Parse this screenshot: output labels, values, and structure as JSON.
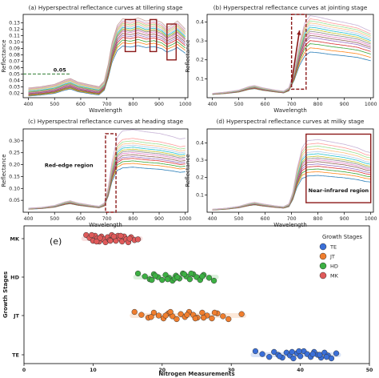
{
  "chart_data": [
    {
      "type": "line",
      "title": "(a) Hyperspectral reflectance curves at tillering stage",
      "xlabel": "Wavelength",
      "ylabel": "Reflectance",
      "xlim": [
        380,
        1010
      ],
      "ylim": [
        0.013,
        0.143
      ],
      "xticks": [
        "400",
        "500",
        "600",
        "700",
        "800",
        "900",
        "1000"
      ],
      "yticks": [
        "0.02",
        "0.03",
        "0.04",
        "0.05",
        "0.06",
        "0.07",
        "0.08",
        "0.09",
        "0.10",
        "0.11",
        "0.12",
        "0.13"
      ],
      "annotations": [
        "0.05"
      ],
      "reference_line": {
        "y": 0.05,
        "color": "#2e7d32"
      },
      "grid": false,
      "curve_shape": {
        "x": [
          400,
          450,
          500,
          540,
          560,
          590,
          640,
          670,
          690,
          705,
          720,
          740,
          760,
          790,
          820,
          850,
          880,
          910,
          930,
          950,
          970,
          1000
        ],
        "y": [
          0.022,
          0.024,
          0.027,
          0.033,
          0.035,
          0.03,
          0.026,
          0.024,
          0.032,
          0.055,
          0.085,
          0.108,
          0.117,
          0.115,
          0.118,
          0.114,
          0.116,
          0.112,
          0.105,
          0.109,
          0.114,
          0.103
        ]
      },
      "series": [
        {
          "y_at_750": 0.09
        },
        {
          "y_at_750": 0.095
        },
        {
          "y_at_750": 0.099
        },
        {
          "y_at_750": 0.103
        },
        {
          "y_at_750": 0.106
        },
        {
          "y_at_750": 0.109
        },
        {
          "y_at_750": 0.112
        },
        {
          "y_at_750": 0.114
        },
        {
          "y_at_750": 0.116
        },
        {
          "y_at_750": 0.118
        },
        {
          "y_at_750": 0.12
        },
        {
          "y_at_750": 0.122
        },
        {
          "y_at_750": 0.124
        },
        {
          "y_at_750": 0.126
        },
        {
          "y_at_750": 0.128
        },
        {
          "y_at_750": 0.131
        }
      ],
      "highlights": [
        {
          "label": "",
          "x": [
            770,
            810
          ],
          "y": [
            0.085,
            0.135
          ]
        },
        {
          "label": "",
          "x": [
            865,
            890
          ],
          "y": [
            0.085,
            0.135
          ]
        },
        {
          "label": "",
          "x": [
            930,
            965
          ],
          "y": [
            0.072,
            0.128
          ]
        }
      ]
    },
    {
      "type": "line",
      "title": "(b) Hyperspectral reflectance curves at jointing stage",
      "xlabel": "Wavelength",
      "ylabel": "Reflectance",
      "xlim": [
        380,
        1010
      ],
      "ylim": [
        0.0,
        0.44
      ],
      "xticks": [
        "400",
        "500",
        "600",
        "700",
        "800",
        "900",
        "1000"
      ],
      "yticks": [
        "0.1",
        "0.2",
        "0.3",
        "0.4"
      ],
      "grid": false,
      "curve_shape": {
        "x": [
          400,
          450,
          500,
          540,
          560,
          590,
          640,
          670,
          690,
          710,
          730,
          750,
          770,
          800,
          850,
          900,
          950,
          1000
        ],
        "y": [
          0.02,
          0.026,
          0.035,
          0.052,
          0.056,
          0.046,
          0.035,
          0.03,
          0.045,
          0.12,
          0.23,
          0.31,
          0.34,
          0.335,
          0.322,
          0.312,
          0.3,
          0.275
        ]
      },
      "series": [
        {
          "y_at_750": 0.22
        },
        {
          "y_at_750": 0.24
        },
        {
          "y_at_750": 0.26
        },
        {
          "y_at_750": 0.275
        },
        {
          "y_at_750": 0.29
        },
        {
          "y_at_750": 0.3
        },
        {
          "y_at_750": 0.31
        },
        {
          "y_at_750": 0.32
        },
        {
          "y_at_750": 0.33
        },
        {
          "y_at_750": 0.34
        },
        {
          "y_at_750": 0.35
        },
        {
          "y_at_750": 0.36
        },
        {
          "y_at_750": 0.37
        },
        {
          "y_at_750": 0.38
        },
        {
          "y_at_750": 0.395
        }
      ],
      "highlights": [
        {
          "label": "",
          "x": [
            700,
            755
          ],
          "y": [
            0.045,
            0.44
          ]
        }
      ],
      "arrow": {
        "from": [
          700,
          0.08
        ],
        "to": [
          730,
          0.355
        ]
      }
    },
    {
      "type": "line",
      "title": "(c) Hyperspectral reflectance curves at heading stage",
      "xlabel": "Wavelength",
      "ylabel": "Reflectance",
      "xlim": [
        380,
        1010
      ],
      "ylim": [
        0.0,
        0.35
      ],
      "xticks": [
        "400",
        "500",
        "600",
        "700",
        "800",
        "900",
        "1000"
      ],
      "yticks": [
        "0.05",
        "0.10",
        "0.15",
        "0.20",
        "0.25",
        "0.30"
      ],
      "annotations": [
        "Red-edge region"
      ],
      "grid": false,
      "curve_shape": {
        "x": [
          400,
          450,
          500,
          540,
          560,
          590,
          640,
          670,
          690,
          705,
          720,
          740,
          760,
          800,
          850,
          900,
          950,
          980,
          1000
        ],
        "y": [
          0.015,
          0.018,
          0.025,
          0.038,
          0.042,
          0.034,
          0.026,
          0.022,
          0.032,
          0.085,
          0.17,
          0.24,
          0.258,
          0.262,
          0.255,
          0.25,
          0.24,
          0.232,
          0.235
        ]
      },
      "series": [
        {
          "y_at_750": 0.18
        },
        {
          "y_at_750": 0.195
        },
        {
          "y_at_750": 0.205
        },
        {
          "y_at_750": 0.215
        },
        {
          "y_at_750": 0.222
        },
        {
          "y_at_750": 0.23
        },
        {
          "y_at_750": 0.238
        },
        {
          "y_at_750": 0.245
        },
        {
          "y_at_750": 0.252
        },
        {
          "y_at_750": 0.26
        },
        {
          "y_at_750": 0.268
        },
        {
          "y_at_750": 0.276
        },
        {
          "y_at_750": 0.285
        },
        {
          "y_at_750": 0.295
        },
        {
          "y_at_750": 0.33
        }
      ],
      "highlights": [
        {
          "label": "Red-edge region",
          "x": [
            695,
            735
          ],
          "y": [
            0.0,
            0.33
          ]
        }
      ]
    },
    {
      "type": "line",
      "title": "(d) Hyperspectral reflectance curves at milky stage",
      "xlabel": "Wavelength",
      "ylabel": "Reflectance",
      "xlim": [
        380,
        1010
      ],
      "ylim": [
        0.0,
        0.48
      ],
      "xticks": [
        "400",
        "500",
        "600",
        "700",
        "800",
        "900",
        "1000"
      ],
      "yticks": [
        "0.1",
        "0.2",
        "0.3",
        "0.4"
      ],
      "annotations": [
        "Near-infrared region"
      ],
      "grid": false,
      "curve_shape": {
        "x": [
          400,
          450,
          500,
          540,
          560,
          590,
          640,
          670,
          690,
          705,
          720,
          740,
          760,
          800,
          850,
          900,
          950,
          980,
          1000
        ],
        "y": [
          0.015,
          0.02,
          0.03,
          0.045,
          0.05,
          0.042,
          0.032,
          0.028,
          0.04,
          0.095,
          0.19,
          0.275,
          0.3,
          0.305,
          0.295,
          0.285,
          0.27,
          0.255,
          0.25
        ]
      },
      "series": [
        {
          "y_at_750": 0.2
        },
        {
          "y_at_750": 0.22
        },
        {
          "y_at_750": 0.235
        },
        {
          "y_at_750": 0.25
        },
        {
          "y_at_750": 0.262
        },
        {
          "y_at_750": 0.275
        },
        {
          "y_at_750": 0.285
        },
        {
          "y_at_750": 0.295
        },
        {
          "y_at_750": 0.305
        },
        {
          "y_at_750": 0.318
        },
        {
          "y_at_750": 0.33
        },
        {
          "y_at_750": 0.345
        },
        {
          "y_at_750": 0.36
        },
        {
          "y_at_750": 0.375
        },
        {
          "y_at_750": 0.395
        }
      ],
      "highlights": [
        {
          "label": "Near-infrared region",
          "x": [
            755,
            1000
          ],
          "y": [
            0.055,
            0.45
          ]
        }
      ]
    },
    {
      "type": "scatter",
      "title": "(e)",
      "xlabel": "Nitrogen Measurements",
      "ylabel": "Growth Stages",
      "xlim": [
        0,
        50
      ],
      "xticks": [
        "0",
        "10",
        "20",
        "30",
        "40",
        "50"
      ],
      "categories": [
        "MK",
        "HD",
        "JT",
        "TE"
      ],
      "legend": {
        "title": "Growth Stages",
        "position": "right",
        "entries": [
          "TE",
          "JT",
          "HD",
          "MK"
        ]
      },
      "series": [
        {
          "name": "MK",
          "color": "#e05a5a",
          "values": [
            9.0,
            9.5,
            10.0,
            10.3,
            10.6,
            10.9,
            11.2,
            11.5,
            11.8,
            12.1,
            12.4,
            12.7,
            13.0,
            13.3,
            13.6,
            13.9,
            14.2,
            14.5,
            14.8,
            15.1,
            15.5,
            16.0,
            9.8,
            11.0,
            12.5,
            14.0,
            15.3,
            10.5,
            13.0,
            16.5
          ]
        },
        {
          "name": "HD",
          "color": "#3cb043",
          "values": [
            16.5,
            17.5,
            18.2,
            18.8,
            19.4,
            20.0,
            20.5,
            21.0,
            21.5,
            22.0,
            22.5,
            23.0,
            23.5,
            24.0,
            24.5,
            25.0,
            25.5,
            26.0,
            26.8,
            27.5,
            19.0,
            21.8,
            24.2,
            25.8,
            20.8,
            23.2,
            22.2,
            18.5
          ]
        },
        {
          "name": "JT",
          "color": "#f07e2e",
          "values": [
            16.0,
            17.0,
            18.0,
            18.8,
            19.5,
            20.2,
            20.9,
            21.5,
            22.1,
            22.7,
            23.3,
            23.9,
            24.5,
            25.1,
            25.8,
            26.5,
            27.2,
            28.0,
            28.8,
            29.6,
            31.5,
            18.4,
            21.2,
            23.6,
            26.0,
            27.6,
            20.5,
            24.8
          ]
        },
        {
          "name": "TE",
          "color": "#3a6fd8",
          "values": [
            33.5,
            34.5,
            35.5,
            36.2,
            36.8,
            37.4,
            38.0,
            38.5,
            39.0,
            39.5,
            40.0,
            40.5,
            41.0,
            41.5,
            42.0,
            42.5,
            43.0,
            43.5,
            44.0,
            44.5,
            45.2,
            37.0,
            39.8,
            41.8,
            43.8,
            38.8,
            42.8
          ]
        }
      ]
    }
  ]
}
